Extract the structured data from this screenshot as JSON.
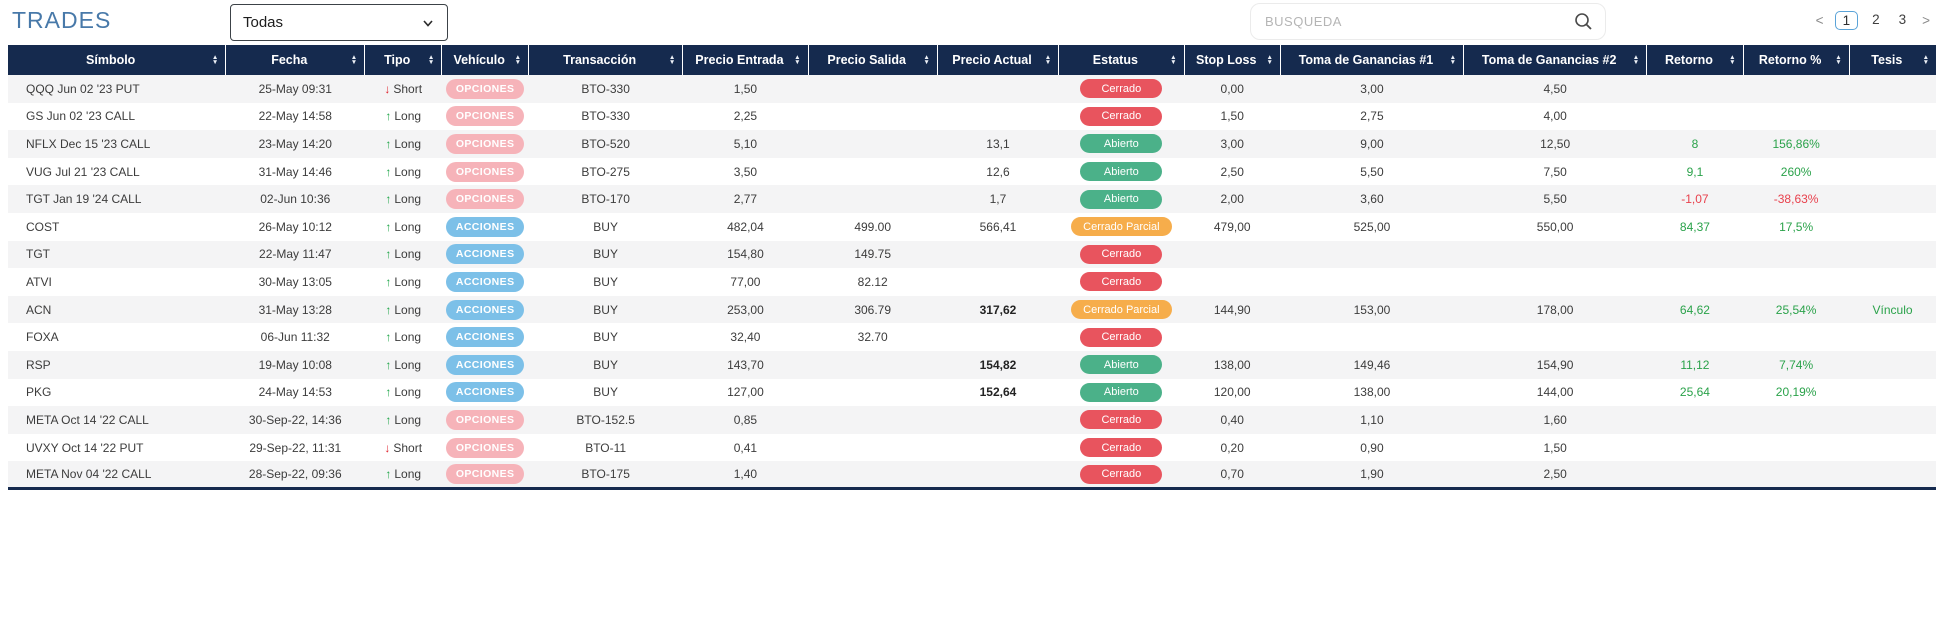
{
  "app": {
    "title": "TRADES",
    "filter": {
      "selected": "Todas",
      "chevron_icon": "chevron-down-icon"
    },
    "search": {
      "placeholder": "BUSQUEDA",
      "icon": "search-icon"
    },
    "pagination": {
      "prev": "<",
      "pages": [
        "1",
        "2",
        "3"
      ],
      "current": "1",
      "next": ">"
    }
  },
  "icons": {
    "sort_up": "▲",
    "sort_down": "▼",
    "long_arrow": "↑",
    "short_arrow": "↓"
  },
  "colors": {
    "header_navy": "#152a4e",
    "title_blue": "#4879a9",
    "badge_opciones": "#f6b3b9",
    "badge_acciones": "#7cc0e8",
    "status_cerrado": "#e8545e",
    "status_abierto": "#4bb189",
    "status_cerrado_parcial": "#f6ad4b",
    "positive_green": "#2aa24a",
    "negative_red": "#e8414d"
  },
  "table": {
    "columns": [
      {
        "key": "simbolo",
        "label": "Símbolo"
      },
      {
        "key": "fecha",
        "label": "Fecha"
      },
      {
        "key": "tipo",
        "label": "Tipo"
      },
      {
        "key": "vehiculo",
        "label": "Vehículo"
      },
      {
        "key": "transaccion",
        "label": "Transacción"
      },
      {
        "key": "precio_entrada",
        "label": "Precio Entrada"
      },
      {
        "key": "precio_salida",
        "label": "Precio Salida"
      },
      {
        "key": "precio_actual",
        "label": "Precio Actual"
      },
      {
        "key": "estatus",
        "label": "Estatus"
      },
      {
        "key": "stop_loss",
        "label": "Stop Loss"
      },
      {
        "key": "tg1",
        "label": "Toma de Ganancias #1"
      },
      {
        "key": "tg2",
        "label": "Toma de Ganancias #2"
      },
      {
        "key": "retorno",
        "label": "Retorno"
      },
      {
        "key": "retorno_pct",
        "label": "Retorno %"
      },
      {
        "key": "tesis",
        "label": "Tesis"
      }
    ],
    "rows": [
      {
        "simbolo": "QQQ Jun 02 '23 PUT",
        "fecha": "25-May 09:31",
        "tipo": "Short",
        "vehiculo": "OPCIONES",
        "transaccion": "BTO-330",
        "precio_entrada": "1,50",
        "precio_salida": "",
        "precio_actual": "",
        "actual_bold": false,
        "estatus": "Cerrado",
        "estatus_type": "cerrado",
        "stop_loss": "0,00",
        "tg1": "3,00",
        "tg2": "4,50",
        "retorno": "",
        "retorno_pct": "",
        "tesis": ""
      },
      {
        "simbolo": "GS Jun 02 '23 CALL",
        "fecha": "22-May 14:58",
        "tipo": "Long",
        "vehiculo": "OPCIONES",
        "transaccion": "BTO-330",
        "precio_entrada": "2,25",
        "precio_salida": "",
        "precio_actual": "",
        "actual_bold": false,
        "estatus": "Cerrado",
        "estatus_type": "cerrado",
        "stop_loss": "1,50",
        "tg1": "2,75",
        "tg2": "4,00",
        "retorno": "",
        "retorno_pct": "",
        "tesis": ""
      },
      {
        "simbolo": "NFLX Dec 15 '23 CALL",
        "fecha": "23-May 14:20",
        "tipo": "Long",
        "vehiculo": "OPCIONES",
        "transaccion": "BTO-520",
        "precio_entrada": "5,10",
        "precio_salida": "",
        "precio_actual": "13,1",
        "actual_bold": false,
        "estatus": "Abierto",
        "estatus_type": "abierto",
        "stop_loss": "3,00",
        "tg1": "9,00",
        "tg2": "12,50",
        "retorno": "8",
        "retorno_pct": "156,86%",
        "tesis": ""
      },
      {
        "simbolo": "VUG Jul 21 '23 CALL",
        "fecha": "31-May 14:46",
        "tipo": "Long",
        "vehiculo": "OPCIONES",
        "transaccion": "BTO-275",
        "precio_entrada": "3,50",
        "precio_salida": "",
        "precio_actual": "12,6",
        "actual_bold": false,
        "estatus": "Abierto",
        "estatus_type": "abierto",
        "stop_loss": "2,50",
        "tg1": "5,50",
        "tg2": "7,50",
        "retorno": "9,1",
        "retorno_pct": "260%",
        "tesis": ""
      },
      {
        "simbolo": "TGT Jan 19 '24 CALL",
        "fecha": "02-Jun 10:36",
        "tipo": "Long",
        "vehiculo": "OPCIONES",
        "transaccion": "BTO-170",
        "precio_entrada": "2,77",
        "precio_salida": "",
        "precio_actual": "1,7",
        "actual_bold": false,
        "estatus": "Abierto",
        "estatus_type": "abierto",
        "stop_loss": "2,00",
        "tg1": "3,60",
        "tg2": "5,50",
        "retorno": "-1,07",
        "retorno_pct": "-38,63%",
        "tesis": ""
      },
      {
        "simbolo": "COST",
        "fecha": "26-May 10:12",
        "tipo": "Long",
        "vehiculo": "ACCIONES",
        "transaccion": "BUY",
        "precio_entrada": "482,04",
        "precio_salida": "499.00",
        "precio_actual": "566,41",
        "actual_bold": false,
        "estatus": "Cerrado Parcial",
        "estatus_type": "parcial",
        "stop_loss": "479,00",
        "tg1": "525,00",
        "tg2": "550,00",
        "retorno": "84,37",
        "retorno_pct": "17,5%",
        "tesis": ""
      },
      {
        "simbolo": "TGT",
        "fecha": "22-May 11:47",
        "tipo": "Long",
        "vehiculo": "ACCIONES",
        "transaccion": "BUY",
        "precio_entrada": "154,80",
        "precio_salida": "149.75",
        "precio_actual": "",
        "actual_bold": false,
        "estatus": "Cerrado",
        "estatus_type": "cerrado",
        "stop_loss": "",
        "tg1": "",
        "tg2": "",
        "retorno": "",
        "retorno_pct": "",
        "tesis": ""
      },
      {
        "simbolo": "ATVI",
        "fecha": "30-May 13:05",
        "tipo": "Long",
        "vehiculo": "ACCIONES",
        "transaccion": "BUY",
        "precio_entrada": "77,00",
        "precio_salida": "82.12",
        "precio_actual": "",
        "actual_bold": false,
        "estatus": "Cerrado",
        "estatus_type": "cerrado",
        "stop_loss": "",
        "tg1": "",
        "tg2": "",
        "retorno": "",
        "retorno_pct": "",
        "tesis": ""
      },
      {
        "simbolo": "ACN",
        "fecha": "31-May 13:28",
        "tipo": "Long",
        "vehiculo": "ACCIONES",
        "transaccion": "BUY",
        "precio_entrada": "253,00",
        "precio_salida": "306.79",
        "precio_actual": "317,62",
        "actual_bold": true,
        "estatus": "Cerrado Parcial",
        "estatus_type": "parcial",
        "stop_loss": "144,90",
        "tg1": "153,00",
        "tg2": "178,00",
        "retorno": "64,62",
        "retorno_pct": "25,54%",
        "tesis": "Vínculo"
      },
      {
        "simbolo": "FOXA",
        "fecha": "06-Jun 11:32",
        "tipo": "Long",
        "vehiculo": "ACCIONES",
        "transaccion": "BUY",
        "precio_entrada": "32,40",
        "precio_salida": "32.70",
        "precio_actual": "",
        "actual_bold": false,
        "estatus": "Cerrado",
        "estatus_type": "cerrado",
        "stop_loss": "",
        "tg1": "",
        "tg2": "",
        "retorno": "",
        "retorno_pct": "",
        "tesis": ""
      },
      {
        "simbolo": "RSP",
        "fecha": "19-May 10:08",
        "tipo": "Long",
        "vehiculo": "ACCIONES",
        "transaccion": "BUY",
        "precio_entrada": "143,70",
        "precio_salida": "",
        "precio_actual": "154,82",
        "actual_bold": true,
        "estatus": "Abierto",
        "estatus_type": "abierto",
        "stop_loss": "138,00",
        "tg1": "149,46",
        "tg2": "154,90",
        "retorno": "11,12",
        "retorno_pct": "7,74%",
        "tesis": ""
      },
      {
        "simbolo": "PKG",
        "fecha": "24-May 14:53",
        "tipo": "Long",
        "vehiculo": "ACCIONES",
        "transaccion": "BUY",
        "precio_entrada": "127,00",
        "precio_salida": "",
        "precio_actual": "152,64",
        "actual_bold": true,
        "estatus": "Abierto",
        "estatus_type": "abierto",
        "stop_loss": "120,00",
        "tg1": "138,00",
        "tg2": "144,00",
        "retorno": "25,64",
        "retorno_pct": "20,19%",
        "tesis": ""
      },
      {
        "simbolo": "META Oct 14 '22 CALL",
        "fecha": "30-Sep-22, 14:36",
        "tipo": "Long",
        "vehiculo": "OPCIONES",
        "transaccion": "BTO-152.5",
        "precio_entrada": "0,85",
        "precio_salida": "",
        "precio_actual": "",
        "actual_bold": false,
        "estatus": "Cerrado",
        "estatus_type": "cerrado",
        "stop_loss": "0,40",
        "tg1": "1,10",
        "tg2": "1,60",
        "retorno": "",
        "retorno_pct": "",
        "tesis": ""
      },
      {
        "simbolo": "UVXY Oct 14 '22 PUT",
        "fecha": "29-Sep-22, 11:31",
        "tipo": "Short",
        "vehiculo": "OPCIONES",
        "transaccion": "BTO-11",
        "precio_entrada": "0,41",
        "precio_salida": "",
        "precio_actual": "",
        "actual_bold": false,
        "estatus": "Cerrado",
        "estatus_type": "cerrado",
        "stop_loss": "0,20",
        "tg1": "0,90",
        "tg2": "1,50",
        "retorno": "",
        "retorno_pct": "",
        "tesis": ""
      },
      {
        "simbolo": "META Nov 04 '22 CALL",
        "fecha": "28-Sep-22, 09:36",
        "tipo": "Long",
        "vehiculo": "OPCIONES",
        "transaccion": "BTO-175",
        "precio_entrada": "1,40",
        "precio_salida": "",
        "precio_actual": "",
        "actual_bold": false,
        "estatus": "Cerrado",
        "estatus_type": "cerrado",
        "stop_loss": "0,70",
        "tg1": "1,90",
        "tg2": "2,50",
        "retorno": "",
        "retorno_pct": "",
        "tesis": ""
      }
    ]
  }
}
